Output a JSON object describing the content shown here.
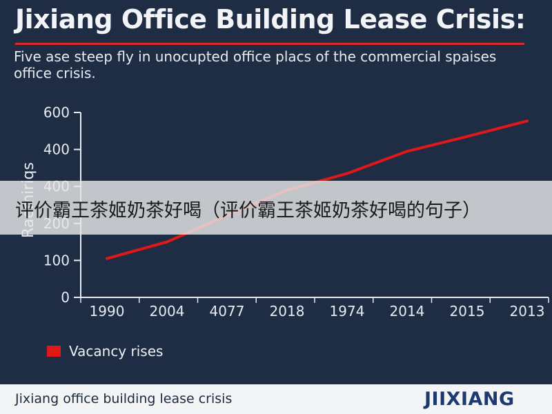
{
  "header": {
    "title": "Jixiang Office Building Lease Crisis:",
    "subtitle": "Five ase steep fly in unocupted office placs of the commercial spaises office crisis."
  },
  "chart_data": {
    "type": "line",
    "title": "Jixiang Office Building Lease Crisis:",
    "subtitle": "Five ase steep fly in unocupted office placs of the commercial spaises office crisis.",
    "ylabel": "Raemiriqs",
    "xlabel": "",
    "categories": [
      "1990",
      "2004",
      "4077",
      "2018",
      "1974",
      "2014",
      "2015",
      "2013"
    ],
    "y_tick_labels": [
      "0",
      "100",
      "200",
      "400",
      "400",
      "600"
    ],
    "ylim": [
      0,
      500
    ],
    "series": [
      {
        "name": "Vacancy rises",
        "color": "#e01818",
        "values": [
          105,
          150,
          222,
          290,
          335,
          395,
          435,
          477
        ]
      }
    ],
    "grid": false,
    "legend": "bottom-left"
  },
  "legend": {
    "label": "Vacancy rises"
  },
  "overlay": {
    "text": "评价霸王茶姬奶茶好喝（评价霸王茶姬奶茶好喝的句子）"
  },
  "footer": {
    "text": "Jixiang office building lease crisis",
    "logo": "JIIXIANG"
  }
}
